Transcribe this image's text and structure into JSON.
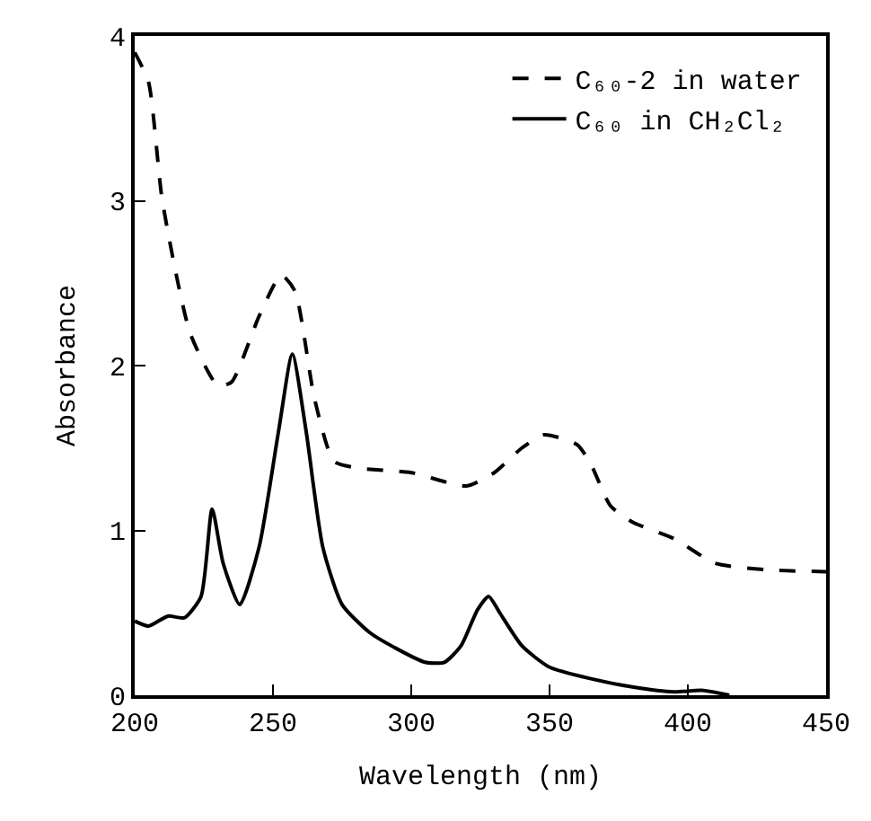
{
  "chart_data": {
    "type": "line",
    "xlabel": "Wavelength (nm)",
    "ylabel": "Absorbance",
    "xlim": [
      200,
      450
    ],
    "xticks": [
      200,
      250,
      300,
      350,
      400,
      450
    ],
    "ylim": [
      0,
      4
    ],
    "yticks": [
      0,
      1,
      2,
      3,
      4
    ],
    "legend": "top right",
    "marker": "none",
    "series": [
      {
        "name": "C₆₀-2 in water",
        "color": "#000000",
        "line_style": "dashed",
        "x": [
          200,
          205,
          210,
          220,
          230,
          235,
          245,
          253,
          258,
          265,
          272,
          280,
          300,
          320,
          330,
          340,
          348,
          360,
          365,
          372,
          380,
          395,
          410,
          430,
          450
        ],
        "values": [
          3.9,
          3.72,
          3.0,
          2.2,
          1.88,
          1.9,
          2.3,
          2.55,
          2.45,
          1.8,
          1.42,
          1.38,
          1.35,
          1.27,
          1.35,
          1.5,
          1.58,
          1.52,
          1.4,
          1.15,
          1.05,
          0.95,
          0.8,
          0.76,
          0.75
        ]
      },
      {
        "name": "C₆₀ in CH₂Cl₂",
        "color": "#000000",
        "line_style": "solid",
        "x": [
          200,
          205,
          212,
          218,
          224,
          228,
          232,
          238,
          245,
          252,
          257,
          262,
          268,
          275,
          285,
          295,
          305,
          312,
          318,
          324,
          328,
          332,
          340,
          350,
          365,
          380,
          395,
          405,
          415
        ],
        "values": [
          0.45,
          0.42,
          0.48,
          0.47,
          0.6,
          1.13,
          0.8,
          0.55,
          0.9,
          1.6,
          2.07,
          1.6,
          0.9,
          0.55,
          0.38,
          0.28,
          0.2,
          0.2,
          0.3,
          0.52,
          0.6,
          0.5,
          0.3,
          0.17,
          0.1,
          0.05,
          0.02,
          0.03,
          0.0
        ]
      }
    ]
  }
}
